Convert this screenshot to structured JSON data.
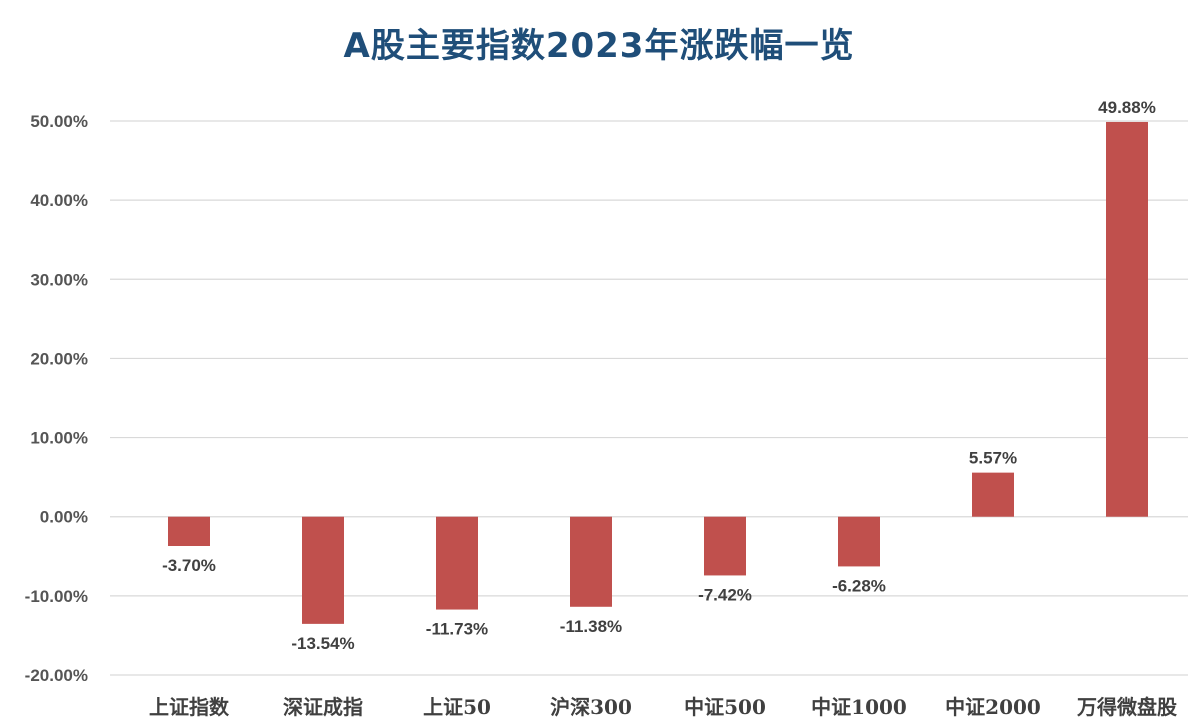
{
  "chart_data": {
    "type": "bar",
    "title": "A股主要指数2023年涨跌幅一览",
    "categories": [
      "上证指数",
      "深证成指",
      "上证50",
      "沪深300",
      "中证500",
      "中证1000",
      "中证2000",
      "万得微盘股"
    ],
    "values": [
      -3.7,
      -13.54,
      -11.73,
      -11.38,
      -7.42,
      -6.28,
      5.57,
      49.88
    ],
    "data_labels": [
      "-3.70%",
      "-13.54%",
      "-11.73%",
      "-11.38%",
      "-7.42%",
      "-6.28%",
      "5.57%",
      "49.88%"
    ],
    "y_ticks": [
      50,
      40,
      30,
      20,
      10,
      0,
      -10,
      -20
    ],
    "y_tick_labels": [
      "50.00%",
      "40.00%",
      "30.00%",
      "20.00%",
      "10.00%",
      "0.00%",
      "-10.00%",
      "-20.00%"
    ],
    "ylim": [
      -20,
      50
    ],
    "xlabel": "",
    "ylabel": "",
    "grid": true,
    "bar_color": "#c0504d",
    "grid_color": "#d9d9d9"
  }
}
